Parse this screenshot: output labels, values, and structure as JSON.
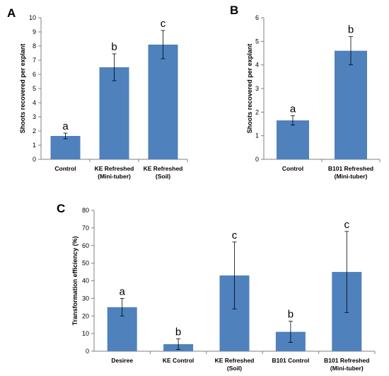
{
  "chart_data": [
    {
      "type": "bar",
      "panel": "A",
      "categories": [
        [
          "Control"
        ],
        [
          "KE Refreshed",
          "(Mini-tuber)"
        ],
        [
          "KE Refreshed",
          "(Soil)"
        ]
      ],
      "values": [
        1.65,
        6.5,
        8.1
      ],
      "errors": [
        0.2,
        0.95,
        1.0
      ],
      "significance": [
        "a",
        "b",
        "c"
      ],
      "ylabel": "Shoots recovered per explant",
      "ylim": [
        0,
        10
      ],
      "ytick_step": 1,
      "bar_color": "#4F81BD"
    },
    {
      "type": "bar",
      "panel": "B",
      "categories": [
        [
          "Control"
        ],
        [
          "B101 Refreshed",
          "(Mini-tuber)"
        ]
      ],
      "values": [
        1.65,
        4.6
      ],
      "errors": [
        0.2,
        0.6
      ],
      "significance": [
        "a",
        "b"
      ],
      "ylabel": "Shoots recovered per explant",
      "ylim": [
        0,
        6
      ],
      "ytick_step": 1,
      "bar_color": "#4F81BD"
    },
    {
      "type": "bar",
      "panel": "C",
      "categories": [
        [
          "Desiree"
        ],
        [
          "KE Control"
        ],
        [
          "KE Refreshed",
          "(Soil)"
        ],
        [
          "B101 Control"
        ],
        [
          "B101 Refreshed",
          "(Mini-tuber)"
        ]
      ],
      "values": [
        25,
        4,
        43,
        11,
        45
      ],
      "errors": [
        5,
        3,
        19,
        6,
        23
      ],
      "significance": [
        "a",
        "b",
        "c",
        "b",
        "c"
      ],
      "ylabel": "Transformation efficiency (%)",
      "ylim": [
        0,
        80
      ],
      "ytick_step": 10,
      "bar_color": "#4F81BD"
    }
  ]
}
